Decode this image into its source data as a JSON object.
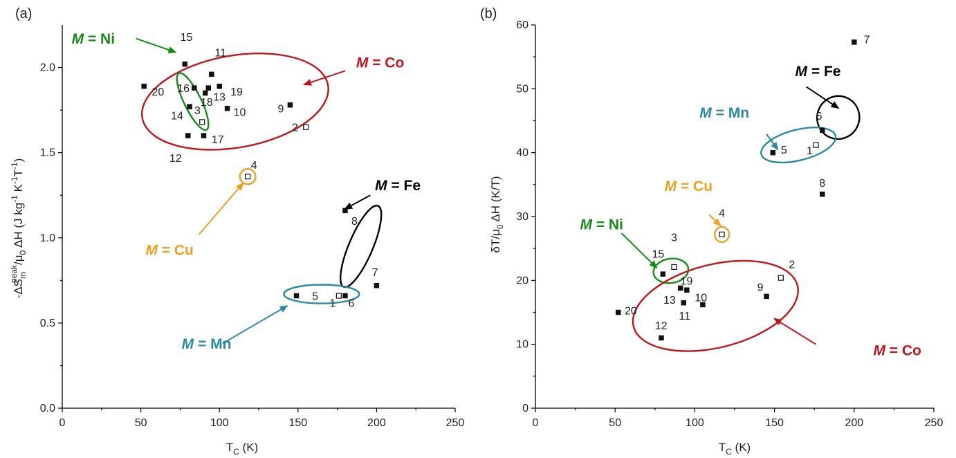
{
  "chart_data": [
    {
      "panel": "(a)",
      "type": "scatter",
      "xlabel_main": "T",
      "xlabel_sub": "C",
      "xlabel_unit": " (K)",
      "ylabel_parts": [
        "-ΔS",
        "m",
        "peak",
        "/μ",
        "0",
        " ΔH (J kg",
        "-1",
        " K",
        "-1",
        "T",
        "-1",
        ")"
      ],
      "xlim": [
        0,
        250
      ],
      "ylim": [
        0,
        2.25
      ],
      "xticks": [
        "0",
        "50",
        "100",
        "150",
        "200",
        "250"
      ],
      "yticks": [
        "0.0",
        "0.5",
        "1.0",
        "1.5",
        "2.0"
      ],
      "xtick_values": [
        0,
        50,
        100,
        150,
        200,
        250
      ],
      "ytick_values": [
        0,
        0.5,
        1.0,
        1.5,
        2.0
      ],
      "points": [
        {
          "label": "1",
          "x": 176,
          "y": 0.66,
          "open": true,
          "lx": 172,
          "ly": 0.62,
          "anchor": "middle"
        },
        {
          "label": "2",
          "x": 155,
          "y": 1.65,
          "open": true,
          "lx": 150,
          "ly": 1.65,
          "anchor": "end"
        },
        {
          "label": "3",
          "x": 89,
          "y": 1.68,
          "open": true,
          "lx": 86,
          "ly": 1.75,
          "anchor": "middle"
        },
        {
          "label": "4",
          "x": 118,
          "y": 1.36,
          "open": true,
          "lx": 122,
          "ly": 1.43,
          "anchor": "middle"
        },
        {
          "label": "5",
          "x": 149,
          "y": 0.66,
          "open": false,
          "lx": 159,
          "ly": 0.66,
          "anchor": "start"
        },
        {
          "label": "6",
          "x": 180,
          "y": 0.66,
          "open": false,
          "lx": 182,
          "ly": 0.62,
          "anchor": "start"
        },
        {
          "label": "7",
          "x": 200,
          "y": 0.72,
          "open": false,
          "lx": 199,
          "ly": 0.8,
          "anchor": "middle"
        },
        {
          "label": "8",
          "x": 180,
          "y": 1.16,
          "open": false,
          "lx": 184,
          "ly": 1.1,
          "anchor": "start"
        },
        {
          "label": "9",
          "x": 145,
          "y": 1.78,
          "open": false,
          "lx": 141,
          "ly": 1.76,
          "anchor": "end"
        },
        {
          "label": "10",
          "x": 105,
          "y": 1.76,
          "open": false,
          "lx": 109,
          "ly": 1.74,
          "anchor": "start"
        },
        {
          "label": "11",
          "x": 95,
          "y": 1.96,
          "open": false,
          "lx": 97,
          "ly": 2.09,
          "anchor": "start"
        },
        {
          "label": "12",
          "x": 80,
          "y": 1.6,
          "open": false,
          "lx": 76,
          "ly": 1.47,
          "anchor": "end"
        },
        {
          "label": "13",
          "x": 93,
          "y": 1.88,
          "open": false,
          "lx": 96,
          "ly": 1.83,
          "anchor": "start"
        },
        {
          "label": "14",
          "x": 81,
          "y": 1.77,
          "open": false,
          "lx": 77,
          "ly": 1.72,
          "anchor": "end"
        },
        {
          "label": "15",
          "x": 78,
          "y": 2.02,
          "open": false,
          "lx": 79,
          "ly": 2.18,
          "anchor": "middle"
        },
        {
          "label": "16",
          "x": 84,
          "y": 1.88,
          "open": false,
          "lx": 81,
          "ly": 1.88,
          "anchor": "end"
        },
        {
          "label": "17",
          "x": 90,
          "y": 1.6,
          "open": false,
          "lx": 95,
          "ly": 1.58,
          "anchor": "start"
        },
        {
          "label": "18",
          "x": 91,
          "y": 1.85,
          "open": false,
          "lx": 88,
          "ly": 1.8,
          "anchor": "start"
        },
        {
          "label": "19",
          "x": 100,
          "y": 1.89,
          "open": false,
          "lx": 107,
          "ly": 1.86,
          "anchor": "start"
        },
        {
          "label": "20",
          "x": 52,
          "y": 1.89,
          "open": false,
          "lx": 57,
          "ly": 1.86,
          "anchor": "start"
        }
      ],
      "groups": [
        {
          "text": "= Co",
          "metal": "M",
          "color": "#c0161c",
          "tx": 187,
          "ty": 2.0,
          "ellipse": {
            "cx": 110,
            "cy": 1.8,
            "rx": 60,
            "ry": 0.27,
            "angle": -10
          },
          "arrow": [
            [
              180,
              1.98
            ],
            [
              154,
              1.9
            ]
          ]
        },
        {
          "text": "= Ni",
          "metal": "M",
          "color": "#178b17",
          "tx": 6,
          "ty": 2.14,
          "ellipse": {
            "cx": 83,
            "cy": 1.8,
            "rx": 20,
            "ry": 0.05,
            "angle": -116
          },
          "arrow": [
            [
              47,
              2.17
            ],
            [
              72,
              2.09
            ]
          ]
        },
        {
          "text": "= Cu",
          "metal": "M",
          "color": "#f0a020",
          "tx": 53,
          "ty": 0.9,
          "ellipse": {
            "cx": 118,
            "cy": 1.36,
            "rx": 5,
            "ry": 0.045,
            "angle": 0
          },
          "arrow": [
            [
              87,
              1.02
            ],
            [
              115,
              1.32
            ]
          ]
        },
        {
          "text": "= Fe",
          "metal": "M",
          "color": "#000000",
          "tx": 199,
          "ty": 1.28,
          "ellipse": {
            "cx": 190,
            "cy": 0.95,
            "rx": 28,
            "ry": 0.07,
            "angle": -67
          },
          "arrow": [
            [
              196,
              1.25
            ],
            [
              180,
              1.17
            ]
          ]
        },
        {
          "text": "= Mn",
          "metal": "M",
          "color": "#2a8aa4",
          "tx": 76,
          "ty": 0.35,
          "ellipse": {
            "cx": 165,
            "cy": 0.67,
            "rx": 24,
            "ry": 0.055,
            "angle": 0
          },
          "arrow": [
            [
              102,
              0.38
            ],
            [
              143,
              0.6
            ]
          ]
        }
      ]
    },
    {
      "panel": "(b)",
      "type": "scatter",
      "xlabel_main": "T",
      "xlabel_sub": "C",
      "xlabel_unit": " (K)",
      "ylabel_parts": [
        "δT/μ",
        "0",
        " ΔH (K/T)"
      ],
      "xlim": [
        0,
        250
      ],
      "ylim": [
        0,
        60
      ],
      "xticks": [
        "0",
        "50",
        "100",
        "150",
        "200",
        "250"
      ],
      "yticks": [
        "0",
        "10",
        "20",
        "30",
        "40",
        "50",
        "60"
      ],
      "xtick_values": [
        0,
        50,
        100,
        150,
        200,
        250
      ],
      "ytick_values": [
        0,
        10,
        20,
        30,
        40,
        50,
        60
      ],
      "points": [
        {
          "label": "1",
          "x": 176,
          "y": 41.2,
          "open": true,
          "lx": 174,
          "ly": 40.4,
          "anchor": "end"
        },
        {
          "label": "2",
          "x": 154,
          "y": 20.4,
          "open": true,
          "lx": 159,
          "ly": 22.6,
          "anchor": "start"
        },
        {
          "label": "3",
          "x": 87,
          "y": 22.1,
          "open": true,
          "lx": 87,
          "ly": 26.8,
          "anchor": "middle"
        },
        {
          "label": "4",
          "x": 117,
          "y": 27.2,
          "open": true,
          "lx": 117,
          "ly": 30.6,
          "anchor": "middle"
        },
        {
          "label": "5",
          "x": 149,
          "y": 40.0,
          "open": false,
          "lx": 154,
          "ly": 40.5,
          "anchor": "start"
        },
        {
          "label": "6",
          "x": 180,
          "y": 43.5,
          "open": false,
          "lx": 178,
          "ly": 45.8,
          "anchor": "middle"
        },
        {
          "label": "7",
          "x": 200,
          "y": 57.3,
          "open": false,
          "lx": 206,
          "ly": 57.8,
          "anchor": "start"
        },
        {
          "label": "8",
          "x": 180,
          "y": 33.5,
          "open": false,
          "lx": 180,
          "ly": 35.3,
          "anchor": "middle"
        },
        {
          "label": "9",
          "x": 145,
          "y": 17.5,
          "open": false,
          "lx": 143,
          "ly": 19.0,
          "anchor": "end"
        },
        {
          "label": "10",
          "x": 105,
          "y": 16.2,
          "open": false,
          "lx": 100,
          "ly": 17.4,
          "anchor": "start"
        },
        {
          "label": "11",
          "x": 93,
          "y": 16.5,
          "open": false,
          "lx": 90,
          "ly": 14.5,
          "anchor": "start"
        },
        {
          "label": "12",
          "x": 79,
          "y": 11.0,
          "open": false,
          "lx": 75,
          "ly": 13.0,
          "anchor": "start"
        },
        {
          "label": "13",
          "x": 91,
          "y": 18.8,
          "open": false,
          "lx": 88,
          "ly": 17.0,
          "anchor": "end"
        },
        {
          "label": "15",
          "x": 80,
          "y": 21.0,
          "open": false,
          "lx": 77,
          "ly": 24.2,
          "anchor": "middle"
        },
        {
          "label": "19",
          "x": 95,
          "y": 18.5,
          "open": false,
          "lx": 91,
          "ly": 20.0,
          "anchor": "start"
        },
        {
          "label": "20",
          "x": 52,
          "y": 15.0,
          "open": false,
          "lx": 56,
          "ly": 15.3,
          "anchor": "start"
        }
      ],
      "groups": [
        {
          "text": "= Fe",
          "metal": "M",
          "color": "#000000",
          "tx": 163,
          "ty": 52.0,
          "ellipse": {
            "cx": 190,
            "cy": 45.5,
            "rx": 13.5,
            "ry": 3.3,
            "angle": -69
          },
          "arrow": [
            [
              170,
              50.3
            ],
            [
              190,
              47.0
            ]
          ]
        },
        {
          "text": "= Mn",
          "metal": "M",
          "color": "#2a8aa4",
          "tx": 103,
          "ty": 45.5,
          "ellipse": {
            "cx": 165,
            "cy": 41.2,
            "rx": 24,
            "ry": 2.4,
            "angle": -14
          },
          "arrow": [
            [
              145,
              42.9
            ],
            [
              152,
              40.5
            ]
          ]
        },
        {
          "text": "= Cu",
          "metal": "M",
          "color": "#f0a020",
          "tx": 81,
          "ty": 34.0,
          "ellipse": {
            "cx": 117,
            "cy": 27.2,
            "rx": 4.5,
            "ry": 1.2,
            "angle": 0
          },
          "arrow": [
            [
              109,
              30.3
            ],
            [
              116,
              28.6
            ]
          ]
        },
        {
          "text": "= Ni",
          "metal": "M",
          "color": "#178b17",
          "tx": 28,
          "ty": 28.0,
          "ellipse": {
            "cx": 85,
            "cy": 21.5,
            "rx": 11,
            "ry": 1.9,
            "angle": -8
          },
          "arrow": [
            [
              54,
              27.4
            ],
            [
              76,
              22.0
            ]
          ]
        },
        {
          "text": "= Co",
          "metal": "M",
          "color": "#c0161c",
          "tx": 212,
          "ty": 8.3,
          "ellipse": {
            "cx": 113,
            "cy": 16.0,
            "rx": 53,
            "ry": 6.5,
            "angle": -14
          },
          "arrow": [
            [
              176,
              10.0
            ],
            [
              150,
              14.0
            ]
          ]
        }
      ]
    }
  ]
}
